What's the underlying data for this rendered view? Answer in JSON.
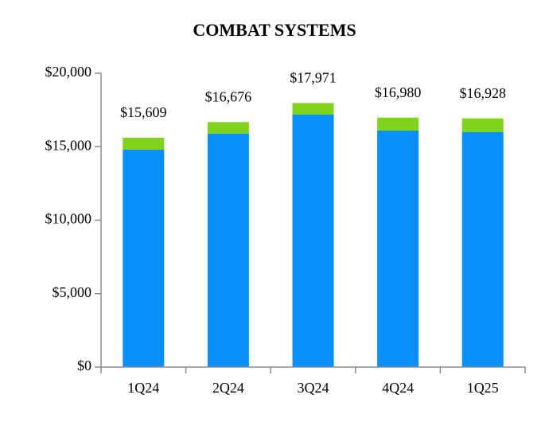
{
  "chart_data": {
    "type": "stacked_bar",
    "title": "COMBAT SYSTEMS",
    "categories": [
      "1Q24",
      "2Q24",
      "3Q24",
      "4Q24",
      "1Q25"
    ],
    "series": [
      {
        "color": "#0a8ff8",
        "values": [
          14800,
          15900,
          17200,
          16100,
          16000
        ]
      },
      {
        "color": "#7fd31b",
        "values": [
          809,
          776,
          771,
          880,
          928
        ]
      }
    ],
    "totals": [
      15609,
      16676,
      17971,
      16980,
      16928
    ],
    "total_labels": [
      "$15,609",
      "$16,676",
      "$17,971",
      "$16,980",
      "$16,928"
    ],
    "ylim": [
      0,
      20000
    ],
    "yticks": [
      {
        "value": 0,
        "label": "$0"
      },
      {
        "value": 5000,
        "label": "$5,000"
      },
      {
        "value": 10000,
        "label": "$10,000"
      },
      {
        "value": 15000,
        "label": "$15,000"
      },
      {
        "value": 20000,
        "label": "$20,000"
      }
    ]
  }
}
